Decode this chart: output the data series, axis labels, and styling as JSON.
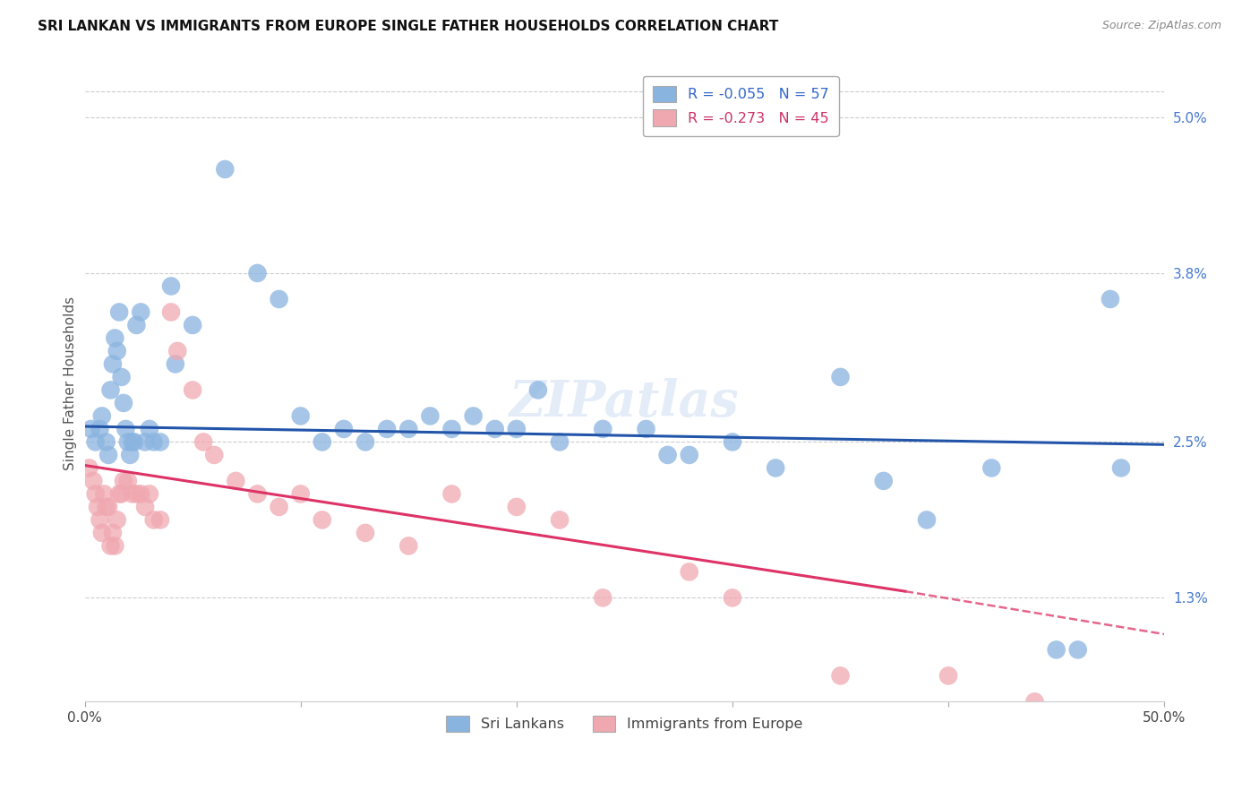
{
  "title": "SRI LANKAN VS IMMIGRANTS FROM EUROPE SINGLE FATHER HOUSEHOLDS CORRELATION CHART",
  "source": "Source: ZipAtlas.com",
  "ylabel": "Single Father Households",
  "yticks": [
    1.3,
    2.5,
    3.8,
    5.0
  ],
  "ytick_labels": [
    "1.3%",
    "2.5%",
    "3.8%",
    "5.0%"
  ],
  "xmin": 0.0,
  "xmax": 50.0,
  "ymin": 0.5,
  "ymax": 5.4,
  "legend_blue_label": "R = -0.055   N = 57",
  "legend_pink_label": "R = -0.273   N = 45",
  "legend_bottom_blue": "Sri Lankans",
  "legend_bottom_pink": "Immigrants from Europe",
  "blue_color": "#8ab4e0",
  "pink_color": "#f0a8b0",
  "blue_line_color": "#2255aa",
  "pink_line_color": "#dd3366",
  "blue_scatter": [
    [
      0.3,
      2.6
    ],
    [
      0.5,
      2.5
    ],
    [
      0.7,
      2.6
    ],
    [
      0.8,
      2.7
    ],
    [
      1.0,
      2.5
    ],
    [
      1.1,
      2.4
    ],
    [
      1.2,
      2.9
    ],
    [
      1.3,
      3.1
    ],
    [
      1.4,
      3.3
    ],
    [
      1.5,
      3.2
    ],
    [
      1.6,
      3.5
    ],
    [
      1.7,
      3.0
    ],
    [
      1.8,
      2.8
    ],
    [
      1.9,
      2.6
    ],
    [
      2.0,
      2.5
    ],
    [
      2.1,
      2.4
    ],
    [
      2.2,
      2.5
    ],
    [
      2.3,
      2.5
    ],
    [
      2.4,
      3.4
    ],
    [
      2.6,
      3.5
    ],
    [
      2.8,
      2.5
    ],
    [
      3.0,
      2.6
    ],
    [
      3.2,
      2.5
    ],
    [
      3.5,
      2.5
    ],
    [
      4.0,
      3.7
    ],
    [
      4.2,
      3.1
    ],
    [
      5.0,
      3.4
    ],
    [
      6.5,
      4.6
    ],
    [
      8.0,
      3.8
    ],
    [
      9.0,
      3.6
    ],
    [
      10.0,
      2.7
    ],
    [
      11.0,
      2.5
    ],
    [
      12.0,
      2.6
    ],
    [
      13.0,
      2.5
    ],
    [
      14.0,
      2.6
    ],
    [
      15.0,
      2.6
    ],
    [
      16.0,
      2.7
    ],
    [
      17.0,
      2.6
    ],
    [
      18.0,
      2.7
    ],
    [
      19.0,
      2.6
    ],
    [
      20.0,
      2.6
    ],
    [
      21.0,
      2.9
    ],
    [
      22.0,
      2.5
    ],
    [
      24.0,
      2.6
    ],
    [
      26.0,
      2.6
    ],
    [
      27.0,
      2.4
    ],
    [
      28.0,
      2.4
    ],
    [
      30.0,
      2.5
    ],
    [
      32.0,
      2.3
    ],
    [
      35.0,
      3.0
    ],
    [
      37.0,
      2.2
    ],
    [
      39.0,
      1.9
    ],
    [
      42.0,
      2.3
    ],
    [
      45.0,
      0.9
    ],
    [
      46.0,
      0.9
    ],
    [
      47.5,
      3.6
    ],
    [
      48.0,
      2.3
    ]
  ],
  "pink_scatter": [
    [
      0.2,
      2.3
    ],
    [
      0.4,
      2.2
    ],
    [
      0.5,
      2.1
    ],
    [
      0.6,
      2.0
    ],
    [
      0.7,
      1.9
    ],
    [
      0.8,
      1.8
    ],
    [
      0.9,
      2.1
    ],
    [
      1.0,
      2.0
    ],
    [
      1.1,
      2.0
    ],
    [
      1.2,
      1.7
    ],
    [
      1.3,
      1.8
    ],
    [
      1.4,
      1.7
    ],
    [
      1.5,
      1.9
    ],
    [
      1.6,
      2.1
    ],
    [
      1.7,
      2.1
    ],
    [
      1.8,
      2.2
    ],
    [
      2.0,
      2.2
    ],
    [
      2.2,
      2.1
    ],
    [
      2.4,
      2.1
    ],
    [
      2.6,
      2.1
    ],
    [
      2.8,
      2.0
    ],
    [
      3.0,
      2.1
    ],
    [
      3.2,
      1.9
    ],
    [
      3.5,
      1.9
    ],
    [
      4.0,
      3.5
    ],
    [
      4.3,
      3.2
    ],
    [
      5.0,
      2.9
    ],
    [
      5.5,
      2.5
    ],
    [
      6.0,
      2.4
    ],
    [
      7.0,
      2.2
    ],
    [
      8.0,
      2.1
    ],
    [
      9.0,
      2.0
    ],
    [
      10.0,
      2.1
    ],
    [
      11.0,
      1.9
    ],
    [
      13.0,
      1.8
    ],
    [
      15.0,
      1.7
    ],
    [
      17.0,
      2.1
    ],
    [
      20.0,
      2.0
    ],
    [
      22.0,
      1.9
    ],
    [
      24.0,
      1.3
    ],
    [
      28.0,
      1.5
    ],
    [
      30.0,
      1.3
    ],
    [
      35.0,
      0.7
    ],
    [
      40.0,
      0.7
    ],
    [
      44.0,
      0.5
    ]
  ],
  "blue_line": [
    [
      0,
      2.62
    ],
    [
      50,
      2.48
    ]
  ],
  "pink_line_solid": [
    [
      0,
      2.32
    ],
    [
      38,
      1.35
    ]
  ],
  "pink_line_dashed": [
    [
      38,
      1.35
    ],
    [
      50,
      1.02
    ]
  ],
  "watermark_text": "ZIPatlas",
  "background_color": "#ffffff",
  "grid_color": "#cccccc",
  "grid_top_y": 5.2
}
